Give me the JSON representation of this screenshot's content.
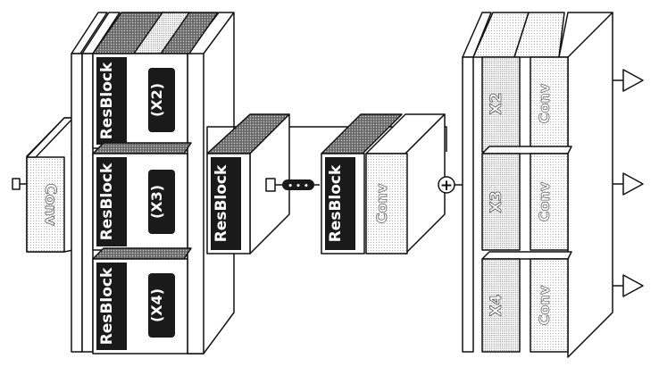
{
  "input_conv": {
    "label": "Conv"
  },
  "encoder": {
    "blocks": [
      {
        "label": "ResBlock",
        "repeat": "(X2)"
      },
      {
        "label": "ResBlock",
        "repeat": "(X3)"
      },
      {
        "label": "ResBlock",
        "repeat": "(X4)"
      }
    ]
  },
  "middle": {
    "block_a": {
      "label": "ResBlock"
    },
    "block_b": {
      "label": "ResBlock"
    },
    "conv": {
      "label": "Conv"
    }
  },
  "head": {
    "rows": [
      {
        "scale": "X2",
        "conv": "Conv"
      },
      {
        "scale": "X3",
        "conv": "Conv"
      },
      {
        "scale": "X4",
        "conv": "Conv"
      }
    ]
  },
  "symbols": {
    "sum": "+",
    "ellipsis": "• • •"
  },
  "colors": {
    "stroke": "#111111",
    "fill": "#ffffff",
    "dark": "#1a1a1a",
    "dot": "#9a9a9a",
    "face_light": "#f3f3f3"
  }
}
